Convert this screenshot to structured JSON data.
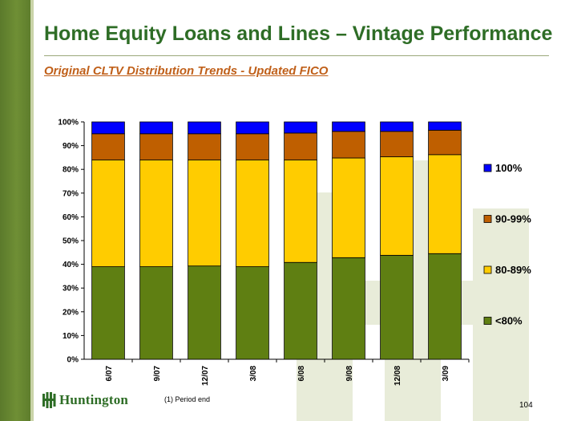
{
  "slide": {
    "title": "Home Equity Loans and Lines – Vintage Performance",
    "subtitle": "Original CLTV Distribution Trends - Updated FICO",
    "footnote": "(1)  Period end",
    "page_number": "104",
    "brand": "Huntington",
    "brand_color": "#2e6d26",
    "accent_color": "#c0601a"
  },
  "chart_data": {
    "type": "bar",
    "stacked": true,
    "percent_axis": true,
    "categories": [
      "6/07",
      "9/07",
      "12/07",
      "3/08",
      "6/08",
      "9/08",
      "12/08",
      "3/09"
    ],
    "series": [
      {
        "name": "<80%",
        "color": "#5f7f12",
        "values": [
          39.0,
          39.0,
          39.3,
          39.0,
          40.8,
          42.8,
          43.8,
          44.5
        ]
      },
      {
        "name": "80-89%",
        "color": "#ffcc00",
        "values": [
          45.0,
          45.0,
          44.7,
          45.0,
          43.2,
          42.0,
          41.5,
          41.7
        ]
      },
      {
        "name": "90-99%",
        "color": "#bf5f00",
        "values": [
          11.0,
          11.0,
          11.0,
          11.0,
          11.3,
          11.2,
          10.7,
          10.3
        ]
      },
      {
        "name": "100%",
        "color": "#0000ff",
        "values": [
          5.0,
          5.0,
          5.0,
          5.0,
          4.7,
          4.0,
          4.0,
          3.5
        ]
      }
    ],
    "ylim": [
      0,
      100
    ],
    "yticks": [
      "0%",
      "10%",
      "20%",
      "30%",
      "40%",
      "50%",
      "60%",
      "70%",
      "80%",
      "90%",
      "100%"
    ],
    "legend_position": "right",
    "grid": false
  }
}
